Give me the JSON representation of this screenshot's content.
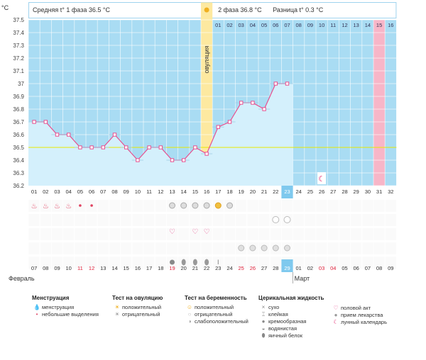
{
  "chart_data": {
    "type": "line",
    "unit": "°C",
    "yticks": [
      "37.5",
      "37.4",
      "37.3",
      "37.2",
      "37.1",
      "37",
      "36.9",
      "36.8",
      "36.7",
      "36.6",
      "36.5",
      "36.4",
      "36.3",
      "36.2"
    ],
    "ylim": [
      36.2,
      37.5
    ],
    "phase1": "Средняя t° 1 фаза 36.5 °C",
    "phase2": "2 фаза 36.8 °C",
    "diff": "Разница t° 0.3 °C",
    "ovulation_label": "овуляция",
    "ovulation_day_index": 15,
    "highlight_cycle_day_index": 30,
    "coverline": 36.5,
    "cycle_days": [
      "01",
      "02",
      "03",
      "04",
      "05",
      "06",
      "07",
      "08",
      "09",
      "10",
      "11",
      "12",
      "13",
      "14",
      "15",
      "16",
      "17",
      "18",
      "19",
      "20",
      "21",
      "22",
      "23",
      "24",
      "25",
      "26",
      "27",
      "28",
      "29",
      "30",
      "31",
      "32"
    ],
    "top_days": [
      "01",
      "02",
      "03",
      "04",
      "05",
      "06",
      "07",
      "08",
      "09",
      "10",
      "11",
      "12",
      "13",
      "14",
      "15",
      "16"
    ],
    "temperatures": [
      36.7,
      36.7,
      36.6,
      36.6,
      36.5,
      36.5,
      36.5,
      36.6,
      36.5,
      36.4,
      36.5,
      36.5,
      36.4,
      36.4,
      36.5,
      36.45,
      36.66,
      36.7,
      36.85,
      36.85,
      36.8,
      37.0,
      37.0
    ],
    "today_index": 22,
    "dates": [
      "07",
      "08",
      "09",
      "10",
      "11",
      "12",
      "13",
      "14",
      "15",
      "16",
      "17",
      "18",
      "19",
      "20",
      "21",
      "22",
      "23",
      "24",
      "25",
      "26",
      "27",
      "28",
      "29",
      "01",
      "02",
      "03",
      "04",
      "05",
      "06",
      "07",
      "08",
      "09"
    ],
    "red_date_indices": [
      4,
      5,
      12,
      18,
      19,
      25,
      26
    ],
    "month1": "Февраль",
    "month2": "Март",
    "menstruation_days": [
      0,
      1,
      2,
      3
    ],
    "spotting_days": [
      4,
      5
    ],
    "ovulation_negative_days": [
      12,
      13,
      14,
      15,
      17
    ],
    "ovulation_positive_days": [
      16
    ],
    "pregnancy_negative_days": [
      21,
      22
    ],
    "intercourse_days": [
      12,
      14,
      15
    ],
    "medication_days": [
      18,
      19,
      20,
      21,
      22
    ],
    "cervical_watery_days": [
      12
    ],
    "cervical_eggwhite_days": [
      13,
      14,
      15
    ],
    "cervical_sticky_days": [
      16
    ],
    "lunar_day": 25
  },
  "legend": {
    "menstruation": {
      "title": "Менструация",
      "items": [
        "менструация",
        "небольшие выделения"
      ]
    },
    "ovulation_test": {
      "title": "Тест на овуляцию",
      "items": [
        "положительный",
        "отрицательный"
      ]
    },
    "pregnancy_test": {
      "title": "Тест на беременность",
      "items": [
        "положительный",
        "отрицательный",
        "слабоположительный"
      ]
    },
    "cervical": {
      "title": "Церикальная жидкость",
      "items": [
        "сухо",
        "клейкая",
        "кремообразная",
        "водянистая",
        "яичный белок"
      ]
    },
    "other": {
      "items": [
        "половой акт",
        "прием лекарства",
        "лунный календарь"
      ]
    }
  },
  "colors": {
    "bg_blue": "#a9dcf3",
    "ovulation": "#fde9a0",
    "pink_day": "#f7b6c8",
    "line": "#e8508f",
    "coverline": "#e8e800",
    "today": "#7fc9ee"
  }
}
